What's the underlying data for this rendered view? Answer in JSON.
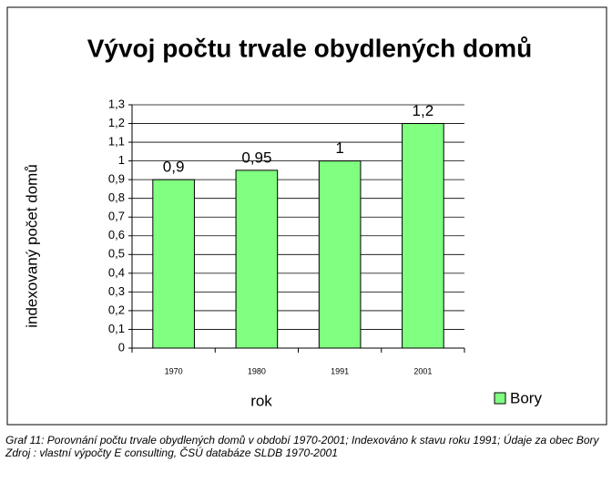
{
  "chart_data": {
    "type": "bar",
    "title": "Vývoj počtu trvale obydlených domů",
    "x_label": "rok",
    "y_label": "indexovaný počet domů",
    "categories": [
      "1970",
      "1980",
      "1991",
      "2001"
    ],
    "series": [
      {
        "name": "Bory",
        "color": "#80ff80",
        "values": [
          0.9,
          0.95,
          1,
          1.2
        ],
        "value_labels": [
          "0,9",
          "0,95",
          "1",
          "1,2"
        ]
      }
    ],
    "ylim": [
      0,
      1.3
    ],
    "yticks": [
      0,
      {
        "value": 0.1,
        "label": "0,1"
      },
      {
        "value": 0.2,
        "label": "0,2"
      },
      {
        "value": 0.3,
        "label": "0,3"
      },
      {
        "value": 0.4,
        "label": "0,4"
      },
      {
        "value": 0.5,
        "label": "0,5"
      },
      {
        "value": 0.6,
        "label": "0,6"
      },
      {
        "value": 0.7,
        "label": "0,7"
      },
      {
        "value": 0.8,
        "label": "0,8"
      },
      {
        "value": 0.9,
        "label": "0,9"
      },
      1,
      {
        "value": 1.1,
        "label": "1,1"
      },
      {
        "value": 1.2,
        "label": "1,2"
      },
      {
        "value": 1.3,
        "label": "1,3"
      }
    ],
    "grid": true,
    "legend": "bottom-right",
    "caption": [
      "Graf 11: Porovnání počtu trvale obydlených domů v období 1970-2001; Indexováno k stavu roku 1991; Údaje za obec Bory",
      "Zdroj : vlastní výpočty E consulting, ČSÚ databáze SLDB 1970-2001"
    ]
  }
}
